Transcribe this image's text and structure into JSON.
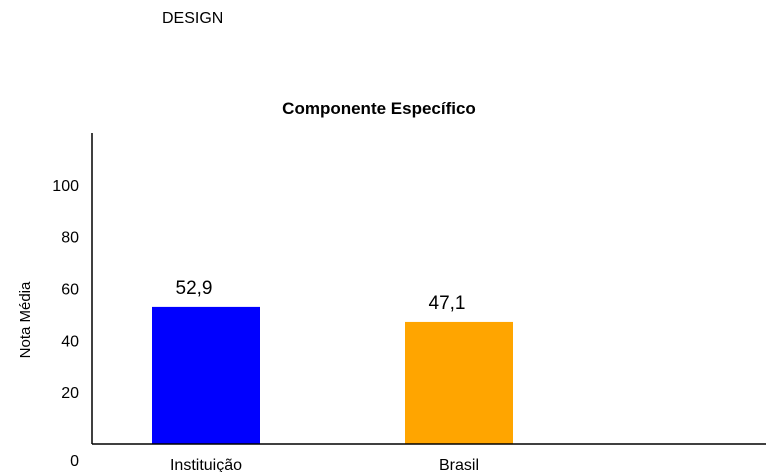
{
  "heading": "DESIGN",
  "chart_data": {
    "type": "bar",
    "title": "Componente Específico",
    "xlabel": "",
    "ylabel": "Nota Média",
    "categories": [
      "Instituição",
      "Brasil"
    ],
    "values": [
      52.9,
      47.1
    ],
    "value_labels": [
      "52,9",
      "47,1"
    ],
    "colors": [
      "#0000ff",
      "#ffa500"
    ],
    "ylim": [
      0,
      120
    ],
    "yticks": [
      0,
      20,
      40,
      60,
      80,
      100
    ],
    "grid": false,
    "legend": "none"
  }
}
